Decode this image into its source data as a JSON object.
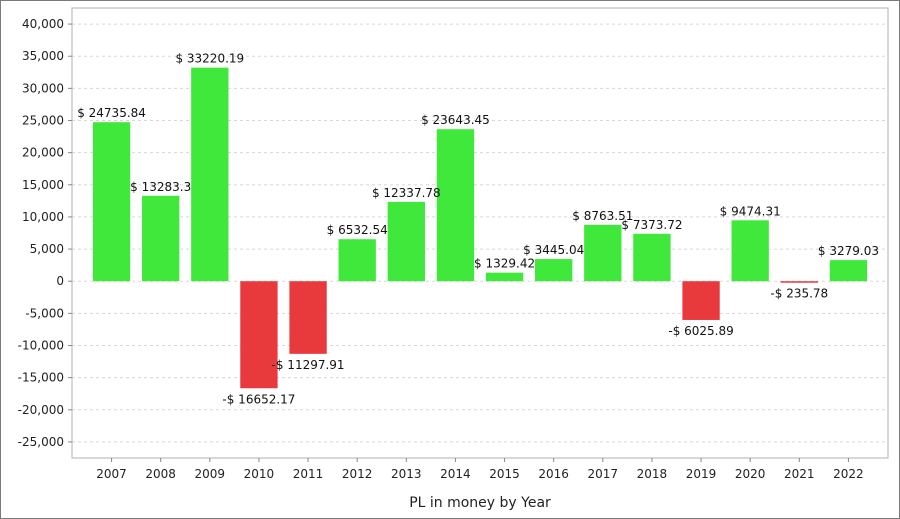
{
  "colors": {
    "positive": "#3fe83a",
    "negative": "#e8393d",
    "grid": "#d8d8d8",
    "axis": "#888888"
  },
  "chart_data": {
    "type": "bar",
    "xlabel": "PL in money by Year",
    "ylabel": "",
    "ylim": [
      -27500,
      42500
    ],
    "grid": true,
    "yticks": [
      40000,
      35000,
      30000,
      25000,
      20000,
      15000,
      10000,
      5000,
      0,
      -5000,
      -10000,
      -15000,
      -20000,
      -25000
    ],
    "ytick_labels": [
      "40,000",
      "35,000",
      "30,000",
      "25,000",
      "20,000",
      "15,000",
      "10,000",
      "5,000",
      "0",
      "-5,000",
      "-10,000",
      "-15,000",
      "-20,000",
      "-25,000"
    ],
    "categories": [
      "2007",
      "2008",
      "2009",
      "2010",
      "2011",
      "2012",
      "2013",
      "2014",
      "2015",
      "2016",
      "2017",
      "2018",
      "2019",
      "2020",
      "2021",
      "2022"
    ],
    "values": [
      24735.84,
      13283.3,
      33220.19,
      -16652.17,
      -11297.91,
      6532.54,
      12337.78,
      23643.45,
      1329.42,
      3445.04,
      8763.51,
      7373.72,
      -6025.89,
      9474.31,
      -235.78,
      3279.03
    ],
    "data_labels": [
      "$ 24735.84",
      "$ 13283.3",
      "$ 33220.19",
      "-$ 16652.17",
      "-$ 11297.91",
      "$ 6532.54",
      "$ 12337.78",
      "$ 23643.45",
      "$ 1329.42",
      "$ 3445.04",
      "$ 8763.51",
      "$ 7373.72",
      "-$ 6025.89",
      "$ 9474.31",
      "-$ 235.78",
      "$ 3279.03"
    ]
  }
}
